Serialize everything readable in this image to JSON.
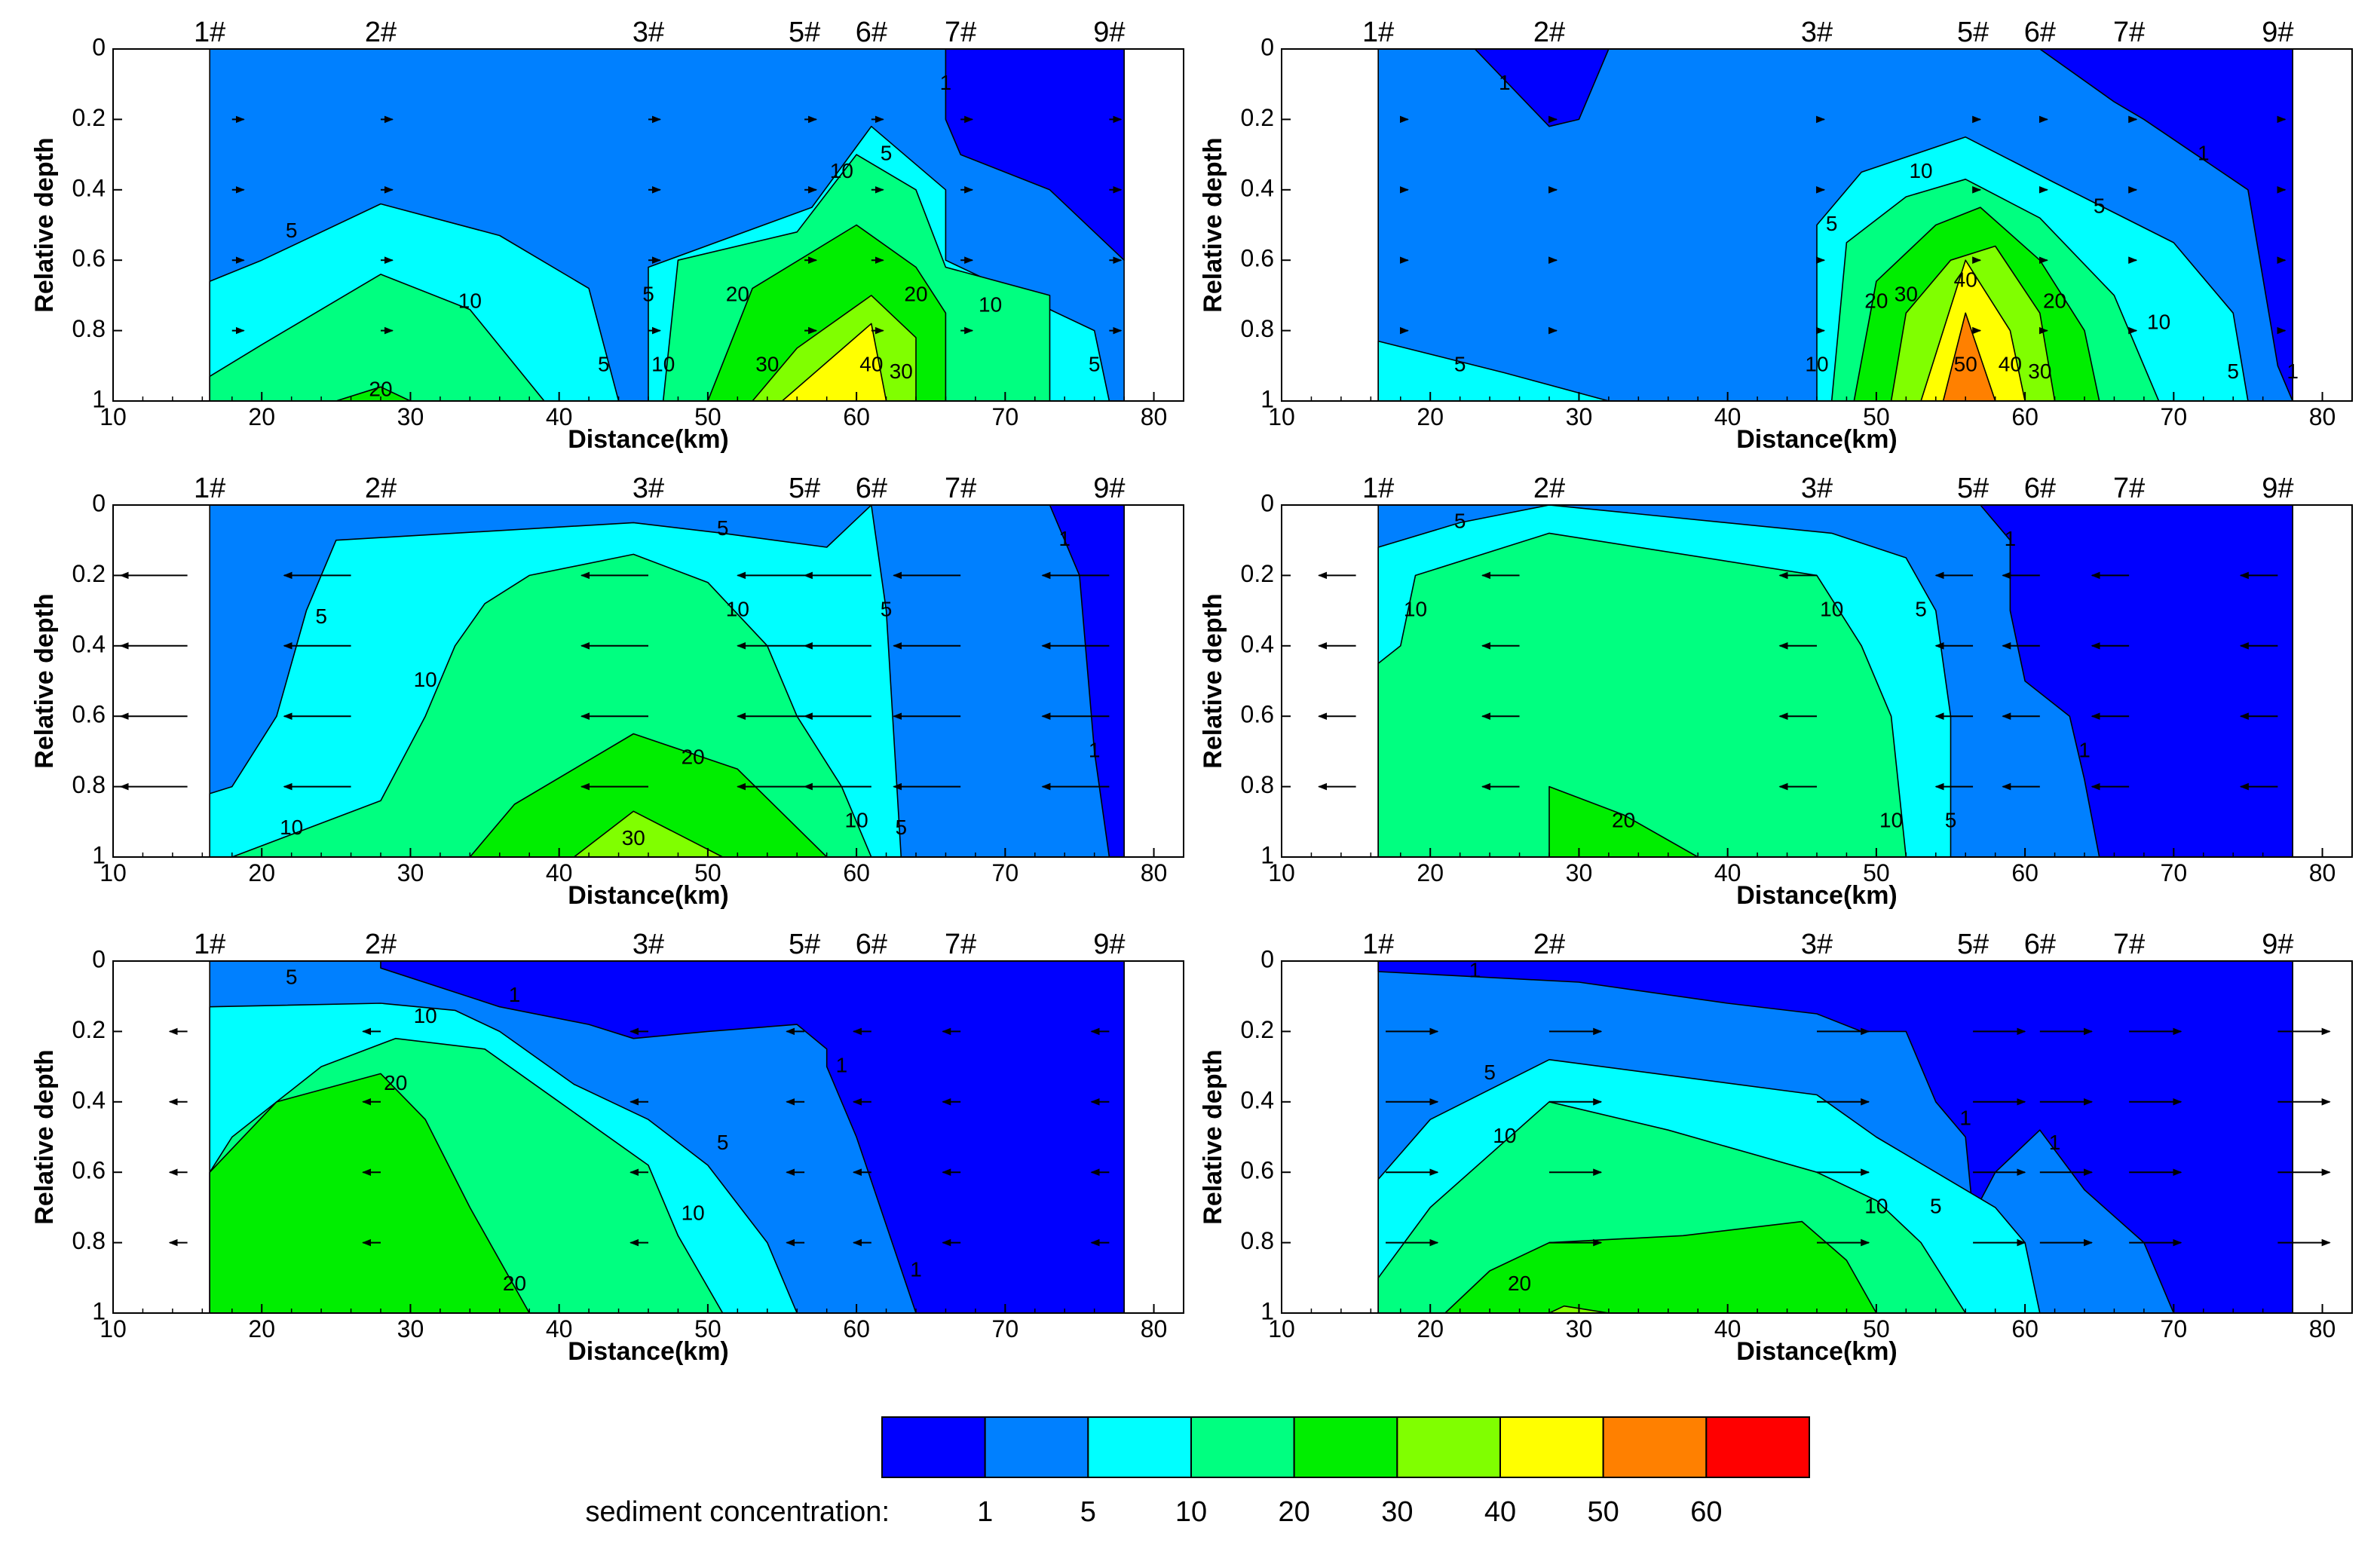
{
  "colors": {
    "bands": [
      "#0000ff",
      "#0080ff",
      "#00ffff",
      "#00ff80",
      "#00ee00",
      "#80ff00",
      "#ffff00",
      "#ff8000",
      "#ff0000"
    ],
    "frame": "#000000",
    "contour_line": "#000000"
  },
  "legend": {
    "label": "sediment concentration:",
    "ticks": [
      "1",
      "5",
      "10",
      "20",
      "30",
      "40",
      "50",
      "60"
    ]
  },
  "chart_data": [
    {
      "type": "contour",
      "panel": "top-left",
      "xlabel": "Distance(km)",
      "ylabel": "Relative depth",
      "xlim": [
        10,
        82
      ],
      "ylim": [
        0,
        1
      ],
      "x_ticks": [
        10,
        20,
        30,
        40,
        50,
        60,
        70,
        80
      ],
      "y_ticks": [
        0,
        0.2,
        0.4,
        0.6,
        0.8,
        1
      ],
      "stations": [
        {
          "label": "1#",
          "x": 16.5
        },
        {
          "label": "2#",
          "x": 28
        },
        {
          "label": "3#",
          "x": 46
        },
        {
          "label": "5#",
          "x": 56.5
        },
        {
          "label": "6#",
          "x": 61
        },
        {
          "label": "7#",
          "x": 67
        },
        {
          "label": "9#",
          "x": 77
        }
      ],
      "data_extent": [
        16.5,
        78
      ],
      "contour_levels": [
        1,
        5,
        10,
        20,
        30,
        40
      ],
      "contour_labels": [
        {
          "text": "5",
          "x": 22,
          "y": 0.52
        },
        {
          "text": "10",
          "x": 34,
          "y": 0.72
        },
        {
          "text": "20",
          "x": 28,
          "y": 0.97
        },
        {
          "text": "5",
          "x": 43,
          "y": 0.9
        },
        {
          "text": "5",
          "x": 46,
          "y": 0.7
        },
        {
          "text": "10",
          "x": 47,
          "y": 0.9
        },
        {
          "text": "20",
          "x": 52,
          "y": 0.7
        },
        {
          "text": "30",
          "x": 54,
          "y": 0.9
        },
        {
          "text": "40",
          "x": 61,
          "y": 0.9
        },
        {
          "text": "30",
          "x": 63,
          "y": 0.92
        },
        {
          "text": "20",
          "x": 64,
          "y": 0.7
        },
        {
          "text": "10",
          "x": 59,
          "y": 0.35
        },
        {
          "text": "5",
          "x": 62,
          "y": 0.3
        },
        {
          "text": "10",
          "x": 69,
          "y": 0.73
        },
        {
          "text": "5",
          "x": 76,
          "y": 0.9
        },
        {
          "text": "1",
          "x": 66,
          "y": 0.1
        }
      ],
      "flow_direction": "seaward-weak"
    },
    {
      "type": "contour",
      "panel": "top-right",
      "xlabel": "Distance(km)",
      "ylabel": "Relative depth",
      "xlim": [
        10,
        82
      ],
      "ylim": [
        0,
        1
      ],
      "x_ticks": [
        10,
        20,
        30,
        40,
        50,
        60,
        70,
        80
      ],
      "y_ticks": [
        0,
        0.2,
        0.4,
        0.6,
        0.8,
        1
      ],
      "stations": [
        {
          "label": "1#",
          "x": 16.5
        },
        {
          "label": "2#",
          "x": 28
        },
        {
          "label": "3#",
          "x": 46
        },
        {
          "label": "5#",
          "x": 56.5
        },
        {
          "label": "6#",
          "x": 61
        },
        {
          "label": "7#",
          "x": 67
        },
        {
          "label": "9#",
          "x": 77
        }
      ],
      "data_extent": [
        16.5,
        78
      ],
      "contour_levels": [
        1,
        5,
        10,
        20,
        30,
        40,
        50
      ],
      "contour_labels": [
        {
          "text": "1",
          "x": 25,
          "y": 0.1
        },
        {
          "text": "5",
          "x": 22,
          "y": 0.9
        },
        {
          "text": "5",
          "x": 47,
          "y": 0.5
        },
        {
          "text": "10",
          "x": 46,
          "y": 0.9
        },
        {
          "text": "10",
          "x": 53,
          "y": 0.35
        },
        {
          "text": "20",
          "x": 50,
          "y": 0.72
        },
        {
          "text": "30",
          "x": 52,
          "y": 0.7
        },
        {
          "text": "40",
          "x": 56,
          "y": 0.66
        },
        {
          "text": "50",
          "x": 56,
          "y": 0.9
        },
        {
          "text": "40",
          "x": 59,
          "y": 0.9
        },
        {
          "text": "30",
          "x": 61,
          "y": 0.92
        },
        {
          "text": "20",
          "x": 62,
          "y": 0.72
        },
        {
          "text": "5",
          "x": 65,
          "y": 0.45
        },
        {
          "text": "10",
          "x": 69,
          "y": 0.78
        },
        {
          "text": "5",
          "x": 74,
          "y": 0.92
        },
        {
          "text": "1",
          "x": 72,
          "y": 0.3
        },
        {
          "text": "1",
          "x": 78,
          "y": 0.92
        }
      ],
      "flow_direction": "seaward-weak"
    },
    {
      "type": "contour",
      "panel": "middle-left",
      "xlabel": "Distance(km)",
      "ylabel": "Relative depth",
      "xlim": [
        10,
        82
      ],
      "ylim": [
        0,
        1
      ],
      "x_ticks": [
        10,
        20,
        30,
        40,
        50,
        60,
        70,
        80
      ],
      "y_ticks": [
        0,
        0.2,
        0.4,
        0.6,
        0.8,
        1
      ],
      "stations": [
        {
          "label": "1#",
          "x": 16.5
        },
        {
          "label": "2#",
          "x": 28
        },
        {
          "label": "3#",
          "x": 46
        },
        {
          "label": "5#",
          "x": 56.5
        },
        {
          "label": "6#",
          "x": 61
        },
        {
          "label": "7#",
          "x": 67
        },
        {
          "label": "9#",
          "x": 77
        }
      ],
      "data_extent": [
        16.5,
        78
      ],
      "contour_levels": [
        1,
        5,
        10,
        20,
        30
      ],
      "contour_labels": [
        {
          "text": "5",
          "x": 24,
          "y": 0.32
        },
        {
          "text": "10",
          "x": 31,
          "y": 0.5
        },
        {
          "text": "10",
          "x": 22,
          "y": 0.92
        },
        {
          "text": "5",
          "x": 51,
          "y": 0.07
        },
        {
          "text": "10",
          "x": 52,
          "y": 0.3
        },
        {
          "text": "20",
          "x": 49,
          "y": 0.72
        },
        {
          "text": "30",
          "x": 45,
          "y": 0.95
        },
        {
          "text": "10",
          "x": 60,
          "y": 0.9
        },
        {
          "text": "5",
          "x": 62,
          "y": 0.3
        },
        {
          "text": "5",
          "x": 63,
          "y": 0.92
        },
        {
          "text": "1",
          "x": 74,
          "y": 0.1
        },
        {
          "text": "1",
          "x": 76,
          "y": 0.7
        }
      ],
      "flow_direction": "landward-strong"
    },
    {
      "type": "contour",
      "panel": "middle-right",
      "xlabel": "Distance(km)",
      "ylabel": "Relative depth",
      "xlim": [
        10,
        82
      ],
      "ylim": [
        0,
        1
      ],
      "x_ticks": [
        10,
        20,
        30,
        40,
        50,
        60,
        70,
        80
      ],
      "y_ticks": [
        0,
        0.2,
        0.4,
        0.6,
        0.8,
        1
      ],
      "stations": [
        {
          "label": "1#",
          "x": 16.5
        },
        {
          "label": "2#",
          "x": 28
        },
        {
          "label": "3#",
          "x": 46
        },
        {
          "label": "5#",
          "x": 56.5
        },
        {
          "label": "6#",
          "x": 61
        },
        {
          "label": "7#",
          "x": 67
        },
        {
          "label": "9#",
          "x": 77
        }
      ],
      "data_extent": [
        16.5,
        78
      ],
      "contour_levels": [
        1,
        5,
        10,
        20
      ],
      "contour_labels": [
        {
          "text": "5",
          "x": 22,
          "y": 0.05
        },
        {
          "text": "10",
          "x": 19,
          "y": 0.3
        },
        {
          "text": "10",
          "x": 47,
          "y": 0.3
        },
        {
          "text": "5",
          "x": 53,
          "y": 0.3
        },
        {
          "text": "10",
          "x": 51,
          "y": 0.9
        },
        {
          "text": "5",
          "x": 55,
          "y": 0.9
        },
        {
          "text": "20",
          "x": 33,
          "y": 0.9
        },
        {
          "text": "1",
          "x": 59,
          "y": 0.1
        },
        {
          "text": "1",
          "x": 64,
          "y": 0.7
        }
      ],
      "flow_direction": "landward-weak"
    },
    {
      "type": "contour",
      "panel": "bottom-left",
      "xlabel": "Distance(km)",
      "ylabel": "Relative depth",
      "xlim": [
        10,
        82
      ],
      "ylim": [
        0,
        1
      ],
      "x_ticks": [
        10,
        20,
        30,
        40,
        50,
        60,
        70,
        80
      ],
      "y_ticks": [
        0,
        0.2,
        0.4,
        0.6,
        0.8,
        1
      ],
      "stations": [
        {
          "label": "1#",
          "x": 16.5
        },
        {
          "label": "2#",
          "x": 28
        },
        {
          "label": "3#",
          "x": 46
        },
        {
          "label": "5#",
          "x": 56.5
        },
        {
          "label": "6#",
          "x": 61
        },
        {
          "label": "7#",
          "x": 67
        },
        {
          "label": "9#",
          "x": 77
        }
      ],
      "data_extent": [
        16.5,
        78
      ],
      "contour_levels": [
        1,
        5,
        10,
        20
      ],
      "contour_labels": [
        {
          "text": "5",
          "x": 22,
          "y": 0.05
        },
        {
          "text": "1",
          "x": 37,
          "y": 0.1
        },
        {
          "text": "10",
          "x": 31,
          "y": 0.16
        },
        {
          "text": "20",
          "x": 29,
          "y": 0.35
        },
        {
          "text": "5",
          "x": 51,
          "y": 0.52
        },
        {
          "text": "10",
          "x": 49,
          "y": 0.72
        },
        {
          "text": "20",
          "x": 37,
          "y": 0.92
        },
        {
          "text": "1",
          "x": 59,
          "y": 0.3
        },
        {
          "text": "1",
          "x": 64,
          "y": 0.88
        }
      ],
      "flow_direction": "landward-weak"
    },
    {
      "type": "contour",
      "panel": "bottom-right",
      "xlabel": "Distance(km)",
      "ylabel": "Relative depth",
      "xlim": [
        10,
        82
      ],
      "ylim": [
        0,
        1
      ],
      "x_ticks": [
        10,
        20,
        30,
        40,
        50,
        60,
        70,
        80
      ],
      "y_ticks": [
        0,
        0.2,
        0.4,
        0.6,
        0.8,
        1
      ],
      "stations": [
        {
          "label": "1#",
          "x": 16.5
        },
        {
          "label": "2#",
          "x": 28
        },
        {
          "label": "3#",
          "x": 46
        },
        {
          "label": "5#",
          "x": 56.5
        },
        {
          "label": "6#",
          "x": 61
        },
        {
          "label": "7#",
          "x": 67
        },
        {
          "label": "9#",
          "x": 77
        }
      ],
      "data_extent": [
        16.5,
        78
      ],
      "contour_levels": [
        1,
        5,
        10,
        20,
        30
      ],
      "contour_labels": [
        {
          "text": "1",
          "x": 23,
          "y": 0.03
        },
        {
          "text": "5",
          "x": 24,
          "y": 0.32
        },
        {
          "text": "10",
          "x": 25,
          "y": 0.5
        },
        {
          "text": "5",
          "x": 54,
          "y": 0.7
        },
        {
          "text": "10",
          "x": 50,
          "y": 0.7
        },
        {
          "text": "20",
          "x": 26,
          "y": 0.92
        },
        {
          "text": "1",
          "x": 56,
          "y": 0.45
        },
        {
          "text": "1",
          "x": 62,
          "y": 0.52
        }
      ],
      "flow_direction": "seaward-strong"
    }
  ]
}
